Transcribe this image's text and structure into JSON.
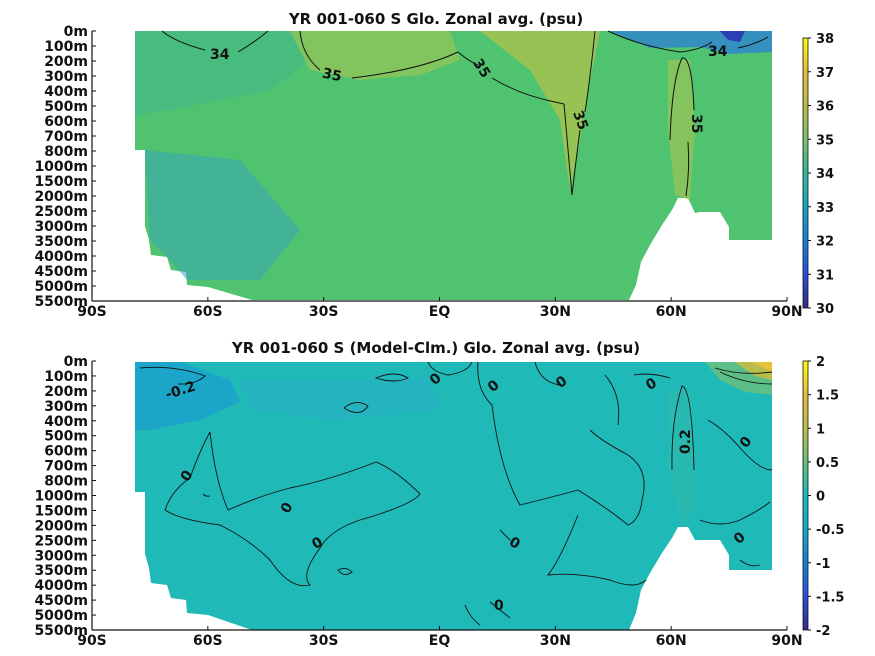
{
  "chart_data": [
    {
      "type": "heatmap",
      "title": "YR 001-060 S Glo. Zonal avg. (psu)",
      "x_ticks": [
        "90S",
        "60S",
        "30S",
        "EQ",
        "30N",
        "60N",
        "90N"
      ],
      "x_values": [
        -90,
        -60,
        -30,
        0,
        30,
        60,
        90
      ],
      "y_ticks": [
        "0m",
        "100m",
        "200m",
        "300m",
        "400m",
        "500m",
        "600m",
        "700m",
        "800m",
        "1000m",
        "1500m",
        "2000m",
        "2500m",
        "3000m",
        "3500m",
        "4000m",
        "4500m",
        "5000m",
        "5500m"
      ],
      "colorbar": {
        "min": 30,
        "max": 38,
        "ticks": [
          "38",
          "37",
          "36",
          "35",
          "34",
          "33",
          "32",
          "31",
          "30"
        ]
      },
      "contour_labels": [
        "34",
        "35",
        "35",
        "35",
        "35",
        "34"
      ],
      "grid": false
    },
    {
      "type": "heatmap",
      "title": "YR 001-060 S (Model-Clm.) Glo. Zonal avg. (psu)",
      "x_ticks": [
        "90S",
        "60S",
        "30S",
        "EQ",
        "30N",
        "60N",
        "90N"
      ],
      "x_values": [
        -90,
        -60,
        -30,
        0,
        30,
        60,
        90
      ],
      "y_ticks": [
        "0m",
        "100m",
        "200m",
        "300m",
        "400m",
        "500m",
        "600m",
        "700m",
        "800m",
        "1000m",
        "1500m",
        "2000m",
        "2500m",
        "3000m",
        "3500m",
        "4000m",
        "4500m",
        "5000m",
        "5500m"
      ],
      "colorbar": {
        "min": -2,
        "max": 2,
        "ticks": [
          "2",
          "1.5",
          "1",
          "0.5",
          "0",
          "-0.5",
          "-1",
          "-1.5",
          "-2"
        ]
      },
      "contour_labels": [
        "-0.2",
        "0",
        "0",
        "0",
        "0",
        "0.2",
        "0",
        "0",
        "0",
        "0",
        "0",
        "0",
        "0"
      ],
      "grid": false
    }
  ]
}
